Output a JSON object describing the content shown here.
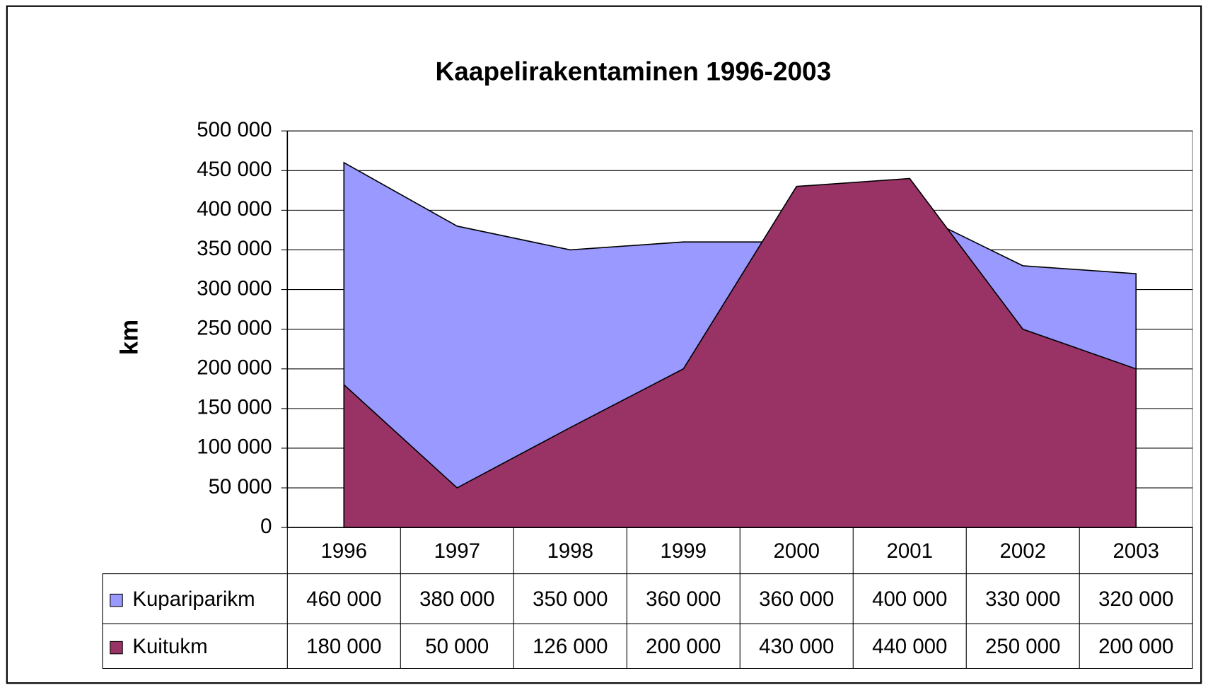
{
  "chart_data": {
    "type": "area",
    "title": "Kaapelirakentaminen 1996-2003",
    "y_label": "km",
    "categories": [
      "1996",
      "1997",
      "1998",
      "1999",
      "2000",
      "2001",
      "2002",
      "2003"
    ],
    "series": [
      {
        "name": "Kupariparikm",
        "color": "#9999ff",
        "values": [
          460000,
          380000,
          350000,
          360000,
          360000,
          400000,
          330000,
          320000
        ],
        "value_labels": [
          "460 000",
          "380 000",
          "350 000",
          "360 000",
          "360 000",
          "400 000",
          "330 000",
          "320 000"
        ]
      },
      {
        "name": "Kuitukm",
        "color": "#993366",
        "values": [
          180000,
          50000,
          126000,
          200000,
          430000,
          440000,
          250000,
          200000
        ],
        "value_labels": [
          "180 000",
          "50 000",
          "126 000",
          "200 000",
          "430 000",
          "440 000",
          "250 000",
          "200 000"
        ]
      }
    ],
    "ylim": [
      0,
      500000
    ],
    "yticks": [
      0,
      {
        "value": 50000,
        "label": "50 000"
      },
      {
        "value": 100000,
        "label": "100 000"
      },
      {
        "value": 150000,
        "label": "150 000"
      },
      {
        "value": 200000,
        "label": "200 000"
      },
      {
        "value": 250000,
        "label": "250 000"
      },
      {
        "value": 300000,
        "label": "300 000"
      },
      {
        "value": 350000,
        "label": "350 000"
      },
      {
        "value": 400000,
        "label": "400 000"
      },
      {
        "value": 450000,
        "label": "450 000"
      },
      {
        "value": 500000,
        "label": "500 000"
      }
    ],
    "grid": true,
    "data_table": true
  }
}
